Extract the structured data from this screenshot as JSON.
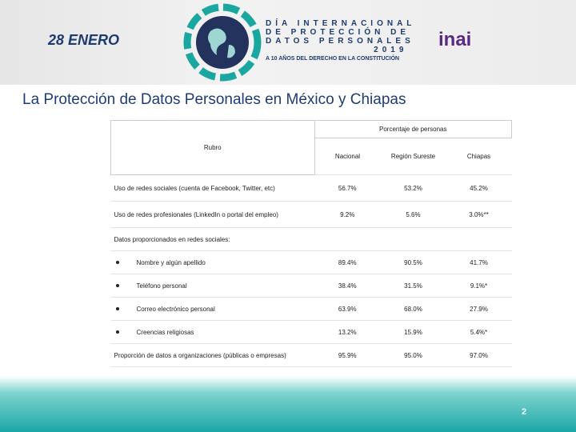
{
  "header": {
    "date": "28 ENERO",
    "event_lines": [
      "DÍA INTERNACIONAL",
      "DE PROTECCIÓN DE",
      "DATOS PERSONALES",
      "2019"
    ],
    "tagline": "A 10 AÑOS DEL DERECHO EN LA CONSTITUCIÓN",
    "brand": "inai"
  },
  "title": "La Protección de Datos Personales en México y  Chiapas",
  "table": {
    "rubro_header": "Rubro",
    "group_header": "Porcentaje de personas",
    "columns": [
      "Nacional",
      "Región Sureste",
      "Chiapas"
    ],
    "rows": [
      {
        "label": "Uso de redes sociales (cuenta de Facebook, Twitter, etc)",
        "values": [
          "56.7%",
          "53.2%",
          "45.2%"
        ]
      },
      {
        "label": "Uso de redes profesionales (LinkedIn o portal del empleo)",
        "values": [
          "9.2%",
          "5.6%",
          "3.0%**"
        ]
      },
      {
        "label": "Datos proporcionados en redes sociales:"
      },
      {
        "label": "Nombre y algún apellido",
        "bullet": true,
        "values": [
          "89.4%",
          "90.5%",
          "41.7%"
        ]
      },
      {
        "label": "Teléfono personal",
        "bullet": true,
        "values": [
          "38.4%",
          "31.5%",
          "9.1%*"
        ]
      },
      {
        "label": "Correo electrónico personal",
        "bullet": true,
        "values": [
          "63.9%",
          "68.0%",
          "27.9%"
        ]
      },
      {
        "label": "Creencias religiosas",
        "bullet": true,
        "values": [
          "13.2%",
          "15.9%",
          "5.4%*"
        ]
      },
      {
        "label": "Proporción de datos a organizaciones (públicas o empresas)",
        "values": [
          "95.9%",
          "95.0%",
          "97.0%"
        ]
      }
    ]
  },
  "page_number": "2"
}
